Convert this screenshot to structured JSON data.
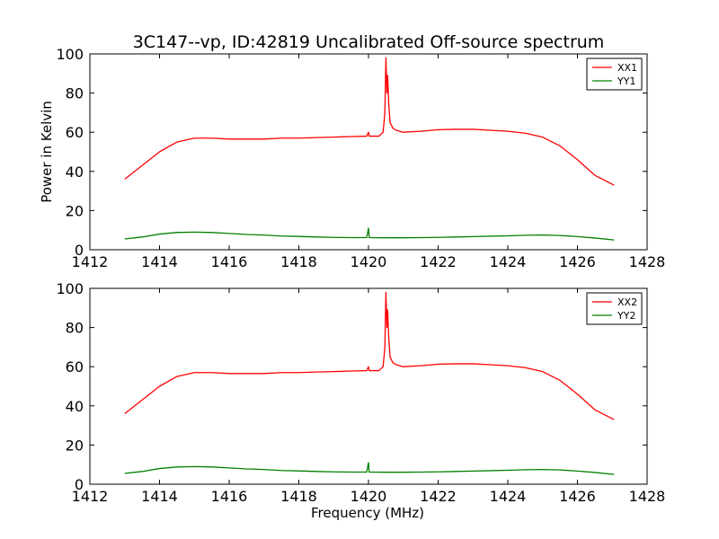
{
  "chart_data": {
    "title": "3C147--vp, ID:42819 Uncalibrated Off-source spectrum",
    "type": "line",
    "panels": [
      {
        "ylabel": "Power in Kelvin",
        "xlabel": "",
        "xlim": [
          1412,
          1428
        ],
        "ylim": [
          0,
          100
        ],
        "xticks": [
          1412,
          1414,
          1416,
          1418,
          1420,
          1422,
          1424,
          1426,
          1428
        ],
        "yticks": [
          0,
          20,
          40,
          60,
          80,
          100
        ],
        "legend_position": "top-right",
        "series": [
          {
            "name": "XX1",
            "color": "#ff0000",
            "x": [
              1413.0,
              1413.5,
              1414.0,
              1414.5,
              1415.0,
              1415.5,
              1416.0,
              1416.5,
              1417.0,
              1417.5,
              1418.0,
              1418.5,
              1419.0,
              1419.5,
              1419.95,
              1420.0,
              1420.02,
              1420.05,
              1420.3,
              1420.42,
              1420.47,
              1420.5,
              1420.53,
              1420.55,
              1420.58,
              1420.6,
              1420.62,
              1420.7,
              1420.8,
              1420.9,
              1421.0,
              1421.5,
              1422.0,
              1422.5,
              1423.0,
              1423.5,
              1424.0,
              1424.5,
              1425.0,
              1425.5,
              1426.0,
              1426.5,
              1427.05
            ],
            "y": [
              36,
              43,
              50,
              55,
              57,
              57,
              56.5,
              56.5,
              56.5,
              57,
              57,
              57.3,
              57.5,
              57.8,
              58,
              60,
              58,
              58,
              58,
              60,
              70,
              98,
              80,
              89,
              75,
              70,
              65,
              62,
              61,
              60.5,
              60,
              60.5,
              61.3,
              61.5,
              61.5,
              61,
              60.5,
              59.5,
              57.5,
              53,
              46,
              38,
              33
            ]
          },
          {
            "name": "YY1",
            "color": "#008000",
            "x": [
              1413.0,
              1413.5,
              1414.0,
              1414.5,
              1415.0,
              1415.5,
              1416.0,
              1416.5,
              1417.0,
              1417.5,
              1418.0,
              1418.5,
              1419.0,
              1419.5,
              1419.95,
              1420.0,
              1420.02,
              1420.05,
              1420.5,
              1421.0,
              1421.5,
              1422.0,
              1422.5,
              1423.0,
              1423.5,
              1424.0,
              1424.5,
              1425.0,
              1425.5,
              1426.0,
              1426.5,
              1427.05
            ],
            "y": [
              5.5,
              6.5,
              8,
              8.8,
              9,
              8.8,
              8.3,
              7.8,
              7.5,
              7,
              6.8,
              6.5,
              6.3,
              6.2,
              6.2,
              11,
              6.2,
              6.2,
              6.1,
              6.1,
              6.2,
              6.3,
              6.5,
              6.7,
              6.9,
              7.1,
              7.4,
              7.5,
              7.3,
              6.7,
              6,
              5
            ]
          }
        ]
      },
      {
        "ylabel": "",
        "xlabel": "Frequency (MHz)",
        "xlim": [
          1412,
          1428
        ],
        "ylim": [
          0,
          100
        ],
        "xticks": [
          1412,
          1414,
          1416,
          1418,
          1420,
          1422,
          1424,
          1426,
          1428
        ],
        "yticks": [
          0,
          20,
          40,
          60,
          80,
          100
        ],
        "legend_position": "top-right",
        "series": [
          {
            "name": "XX2",
            "color": "#ff0000",
            "x": [
              1413.0,
              1413.5,
              1414.0,
              1414.5,
              1415.0,
              1415.5,
              1416.0,
              1416.5,
              1417.0,
              1417.5,
              1418.0,
              1418.5,
              1419.0,
              1419.5,
              1419.95,
              1420.0,
              1420.02,
              1420.05,
              1420.3,
              1420.42,
              1420.47,
              1420.5,
              1420.53,
              1420.55,
              1420.58,
              1420.6,
              1420.62,
              1420.7,
              1420.8,
              1420.9,
              1421.0,
              1421.5,
              1422.0,
              1422.5,
              1423.0,
              1423.5,
              1424.0,
              1424.5,
              1425.0,
              1425.5,
              1426.0,
              1426.5,
              1427.05
            ],
            "y": [
              36,
              43,
              50,
              55,
              57,
              57,
              56.5,
              56.5,
              56.5,
              57,
              57,
              57.3,
              57.5,
              57.8,
              58,
              60,
              58,
              58,
              58,
              60,
              70,
              98,
              80,
              89,
              75,
              70,
              65,
              62,
              61,
              60.5,
              60,
              60.5,
              61.3,
              61.5,
              61.5,
              61,
              60.5,
              59.5,
              57.5,
              53,
              46,
              38,
              33
            ]
          },
          {
            "name": "YY2",
            "color": "#008000",
            "x": [
              1413.0,
              1413.5,
              1414.0,
              1414.5,
              1415.0,
              1415.5,
              1416.0,
              1416.5,
              1417.0,
              1417.5,
              1418.0,
              1418.5,
              1419.0,
              1419.5,
              1419.95,
              1420.0,
              1420.02,
              1420.05,
              1420.5,
              1421.0,
              1421.5,
              1422.0,
              1422.5,
              1423.0,
              1423.5,
              1424.0,
              1424.5,
              1425.0,
              1425.5,
              1426.0,
              1426.5,
              1427.05
            ],
            "y": [
              5.5,
              6.5,
              8,
              8.8,
              9,
              8.8,
              8.3,
              7.8,
              7.5,
              7,
              6.8,
              6.5,
              6.3,
              6.2,
              6.2,
              11,
              6.2,
              6.2,
              6.1,
              6.1,
              6.2,
              6.3,
              6.5,
              6.7,
              6.9,
              7.1,
              7.4,
              7.5,
              7.3,
              6.7,
              6,
              5
            ]
          }
        ]
      }
    ]
  }
}
